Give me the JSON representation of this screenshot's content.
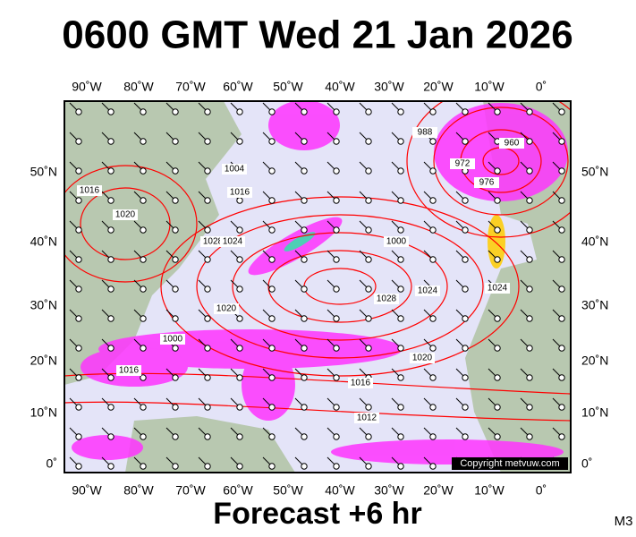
{
  "title": "0600 GMT Wed 21 Jan 2026",
  "footer": "Forecast +6 hr",
  "corner": "M3",
  "copyright": "Copyright metvuw.com",
  "lon_labels": [
    "90˚W",
    "80˚W",
    "70˚W",
    "60˚W",
    "50˚W",
    "40˚W",
    "30˚W",
    "20˚W",
    "10˚W",
    "0˚"
  ],
  "lat_labels": [
    "50˚N",
    "40˚N",
    "30˚N",
    "20˚N",
    "10˚N",
    "0˚"
  ],
  "isobar_labels": [
    "1004",
    "1016",
    "1016",
    "1020",
    "1028",
    "1024",
    "1000",
    "1028",
    "1024",
    "1024",
    "1020",
    "1000",
    "1020",
    "1016",
    "1016",
    "1012",
    "976",
    "972",
    "960",
    "988"
  ]
}
